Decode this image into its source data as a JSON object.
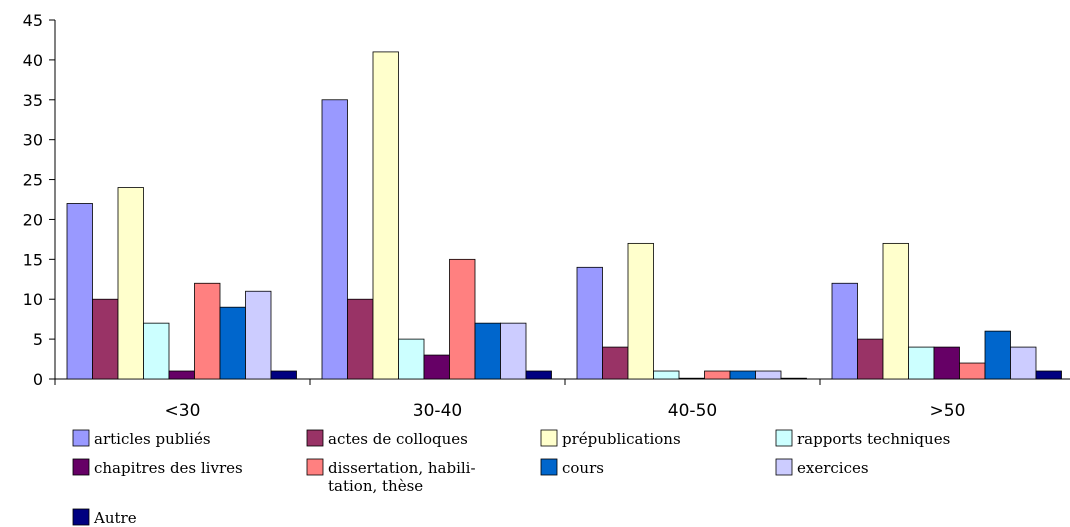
{
  "chart_data": {
    "type": "bar",
    "categories": [
      "<30",
      "30-40",
      "40-50",
      ">50"
    ],
    "ylim": [
      0,
      45
    ],
    "yticks": [
      0,
      5,
      10,
      15,
      20,
      25,
      30,
      35,
      40,
      45
    ],
    "grid": false,
    "legend_position": "bottom",
    "series": [
      {
        "name": "articles publiés",
        "color": "#9999ff",
        "values": [
          22,
          35,
          14,
          12
        ]
      },
      {
        "name": "actes de colloques",
        "color": "#993366",
        "values": [
          10,
          10,
          4,
          5
        ]
      },
      {
        "name": "prépublications",
        "color": "#ffffcc",
        "values": [
          24,
          41,
          17,
          17
        ]
      },
      {
        "name": "rapports  techniques",
        "color": "#ccffff",
        "values": [
          7,
          5,
          1,
          4
        ]
      },
      {
        "name": "chapitres des livres",
        "color": "#660066",
        "values": [
          1,
          3,
          0,
          4
        ]
      },
      {
        "name": "dissertation, habili-\ntation, thèse",
        "color": "#ff8080",
        "values": [
          12,
          15,
          1,
          2
        ]
      },
      {
        "name": "cours",
        "color": "#0066cc",
        "values": [
          9,
          7,
          1,
          6
        ]
      },
      {
        "name": "exercices",
        "color": "#ccccff",
        "values": [
          11,
          7,
          1,
          4
        ]
      },
      {
        "name": "Autre",
        "color": "#000080",
        "values": [
          1,
          1,
          0,
          1
        ]
      }
    ]
  }
}
